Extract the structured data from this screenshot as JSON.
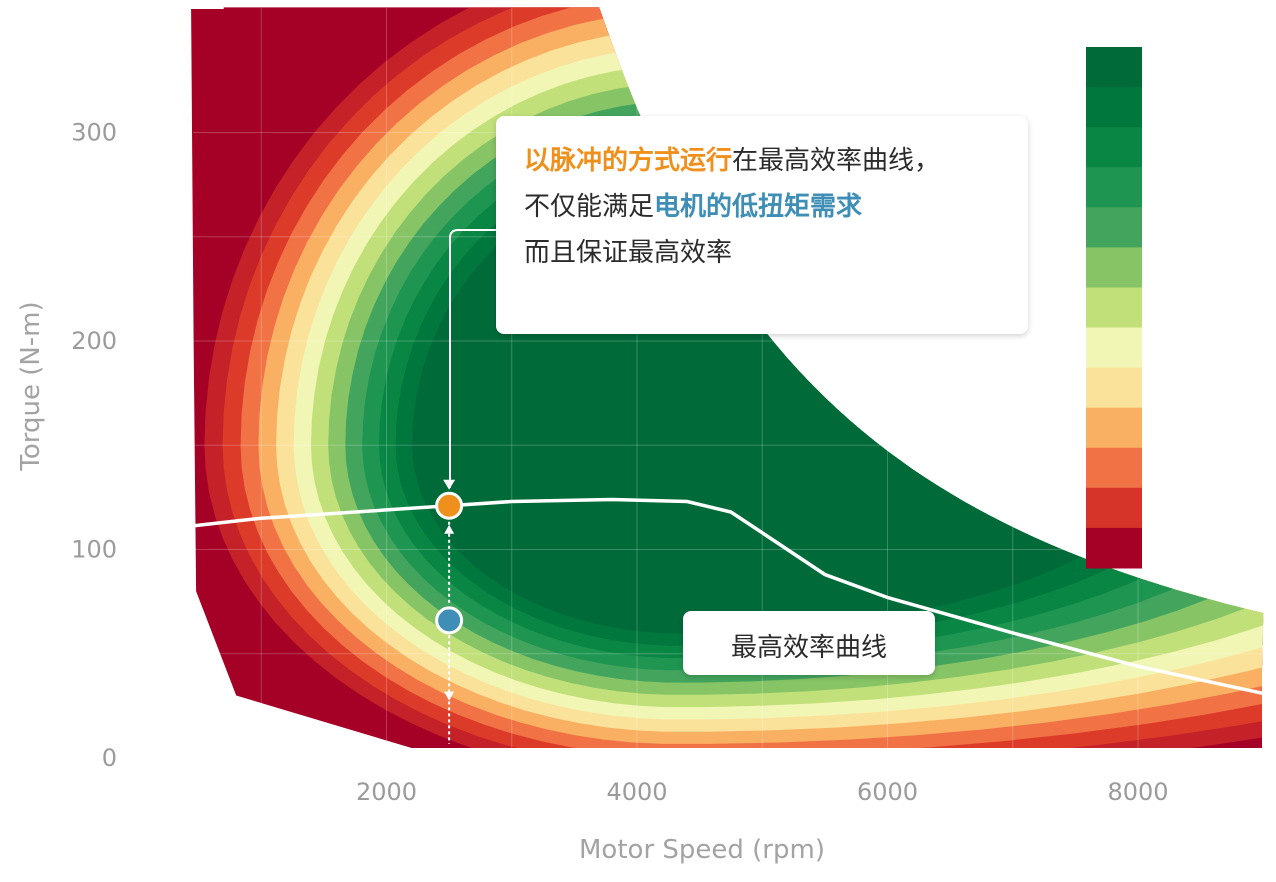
{
  "chart_data": {
    "type": "contour",
    "xlabel": "Motor Speed (rpm)",
    "ylabel": "Torque (N-m)",
    "x_ticks": [
      "2000",
      "4000",
      "6000",
      "8000"
    ],
    "y_ticks": [
      "0",
      "100",
      "200",
      "300"
    ],
    "xlim": [
      -500,
      9000
    ],
    "ylim": [
      0,
      360
    ],
    "grid": true,
    "colorbar": {
      "placement": "right",
      "levels": [
        "#006b39",
        "#00773d",
        "#0a8644",
        "#1e9550",
        "#43a55d",
        "#86c466",
        "#c2e07a",
        "#f1f6b4",
        "#fbe29a",
        "#f9b063",
        "#f07245",
        "#d63428",
        "#a50026"
      ]
    },
    "contour_fills": [
      "#a50026",
      "#c42128",
      "#dd3b29",
      "#f07245",
      "#f9b063",
      "#fbe29a",
      "#f1f6b4",
      "#c2e07a",
      "#86c466",
      "#43a55d",
      "#1e9550",
      "#0a8644",
      "#00773d",
      "#006b39"
    ],
    "peak_efficiency_region": {
      "speed": 4300,
      "torque": 150
    },
    "max_torque_plateau": 360,
    "base_speed": 3700,
    "max_efficiency_curve": {
      "name": "最高效率曲线",
      "x": [
        400,
        1000,
        2000,
        2500,
        3000,
        3800,
        4400,
        4750,
        5000,
        5500,
        6000,
        7000,
        8000,
        9000
      ],
      "y": [
        111,
        115,
        119,
        121,
        123,
        124,
        123,
        118,
        108,
        88,
        77,
        60,
        44,
        31
      ]
    },
    "points": [
      {
        "name": "pulse-operating-point",
        "x": 2500,
        "y": 121,
        "color": "#f0901c"
      },
      {
        "name": "low-torque-demand-point",
        "x": 2500,
        "y": 66,
        "color": "#3f8eb6"
      }
    ]
  },
  "annotation_main": {
    "line1_highlight": "以脉冲的方式运行",
    "line1_rest": "在最高效率曲线，",
    "line2_start": "不仅能满足",
    "line2_highlight": "电机的低扭矩需求",
    "line3": "而且保证最高效率"
  },
  "annotation_curve": {
    "label": "最高效率曲线"
  }
}
